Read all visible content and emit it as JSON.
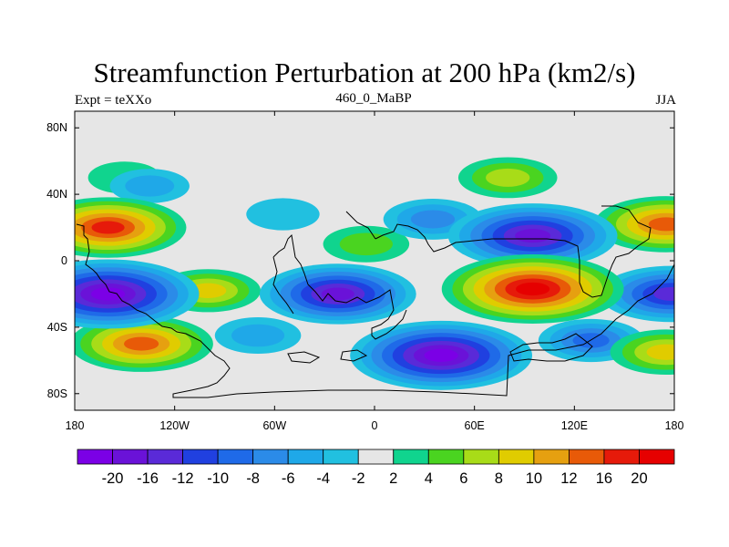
{
  "chart_data": {
    "type": "heatmap",
    "title": "Streamfunction Perturbation at 200 hPa (km2/s)",
    "left_string": "Expt = teXXo",
    "center_string": "460_0_MaBP",
    "right_string": "JJA",
    "xlim": [
      -180,
      180
    ],
    "ylim": [
      -90,
      90
    ],
    "x_ticks": [
      {
        "value": -180,
        "label": "180"
      },
      {
        "value": -120,
        "label": "120W"
      },
      {
        "value": -60,
        "label": "60W"
      },
      {
        "value": 0,
        "label": "0"
      },
      {
        "value": 60,
        "label": "60E"
      },
      {
        "value": 120,
        "label": "120E"
      },
      {
        "value": 180,
        "label": "180"
      }
    ],
    "y_ticks": [
      {
        "value": 80,
        "label": "80N"
      },
      {
        "value": 40,
        "label": "40N"
      },
      {
        "value": 0,
        "label": "0"
      },
      {
        "value": -40,
        "label": "40S"
      },
      {
        "value": -80,
        "label": "80S"
      }
    ],
    "levels": [
      -20,
      -16,
      -12,
      -10,
      -8,
      -6,
      -4,
      -2,
      2,
      4,
      6,
      8,
      10,
      12,
      16,
      20
    ],
    "level_labels": [
      "-20",
      "-16",
      "-12",
      "-10",
      "-8",
      "-6",
      "-4",
      "-2",
      "2",
      "4",
      "6",
      "8",
      "10",
      "12",
      "16",
      "20"
    ],
    "colors": [
      "#7b00e6",
      "#6a12d8",
      "#5a2ad8",
      "#2040e0",
      "#1f6ae8",
      "#2b8be8",
      "#1fa8e8",
      "#21c0e0",
      "#e6e6e6",
      "#10d48e",
      "#4ad420",
      "#a8dc18",
      "#e0cc00",
      "#e6a010",
      "#e85a08",
      "#e61a0a",
      "#e60000"
    ],
    "centers": [
      {
        "lon": -160,
        "lat": 20,
        "value": 16
      },
      {
        "lon": -160,
        "lat": -20,
        "value": -20
      },
      {
        "lon": -140,
        "lat": -50,
        "value": 14
      },
      {
        "lon": -100,
        "lat": -18,
        "value": 8
      },
      {
        "lon": -22,
        "lat": -20,
        "value": -16
      },
      {
        "lon": 95,
        "lat": -17,
        "value": 20
      },
      {
        "lon": 95,
        "lat": 15,
        "value": -18
      },
      {
        "lon": 40,
        "lat": -57,
        "value": -20
      },
      {
        "lon": 80,
        "lat": 50,
        "value": 7
      },
      {
        "lon": 175,
        "lat": 22,
        "value": 14
      },
      {
        "lon": 178,
        "lat": -20,
        "value": -14
      },
      {
        "lon": 175,
        "lat": -55,
        "value": 9
      },
      {
        "lon": 35,
        "lat": 25,
        "value": -7
      },
      {
        "lon": -135,
        "lat": 45,
        "value": -4
      },
      {
        "lon": -55,
        "lat": 28,
        "value": -3
      },
      {
        "lon": -70,
        "lat": -45,
        "value": -5
      },
      {
        "lon": -150,
        "lat": 50,
        "value": 3
      },
      {
        "lon": -5,
        "lat": 10,
        "value": 5
      },
      {
        "lon": 130,
        "lat": -48,
        "value": -8
      }
    ]
  }
}
